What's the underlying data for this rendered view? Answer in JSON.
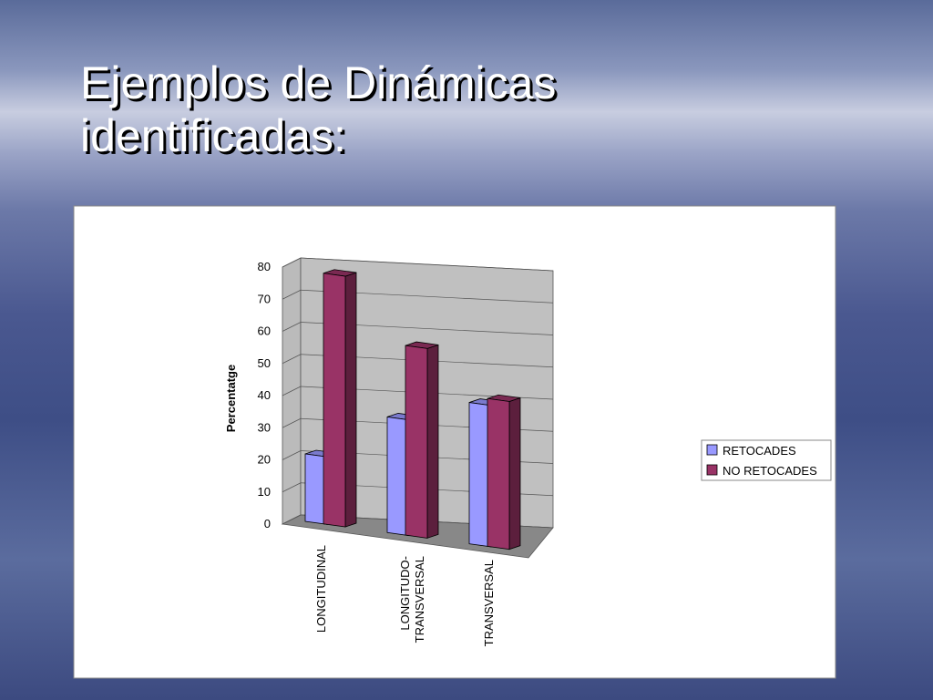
{
  "chart_data": {
    "type": "bar3d",
    "title": "Ejemplos de Dinámicas identificadas:",
    "y_label": "Percentatge",
    "categories": [
      "LONGITUDINAL",
      "LONGITUDO-TRANSVERSAL",
      "TRANSVERSAL"
    ],
    "series": [
      {
        "name": "RETOCADES",
        "color": "#9999ff",
        "values": [
          21,
          36,
          44
        ]
      },
      {
        "name": "NO RETOCADES",
        "color": "#993366",
        "values": [
          78,
          59,
          46
        ]
      }
    ],
    "ylim": [
      0,
      80
    ],
    "yticks": [
      0,
      10,
      20,
      30,
      40,
      50,
      60,
      70,
      80
    ],
    "grid": true,
    "legend": "right"
  }
}
